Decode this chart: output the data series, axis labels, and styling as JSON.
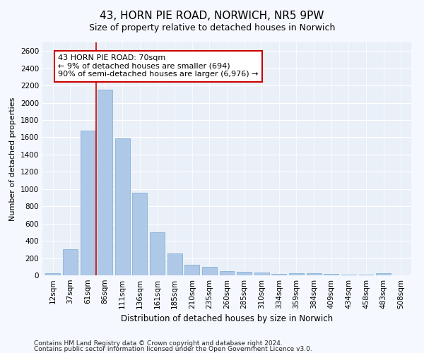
{
  "title": "43, HORN PIE ROAD, NORWICH, NR5 9PW",
  "subtitle": "Size of property relative to detached houses in Norwich",
  "xlabel": "Distribution of detached houses by size in Norwich",
  "ylabel": "Number of detached properties",
  "categories": [
    "12sqm",
    "37sqm",
    "61sqm",
    "86sqm",
    "111sqm",
    "136sqm",
    "161sqm",
    "185sqm",
    "210sqm",
    "235sqm",
    "260sqm",
    "285sqm",
    "310sqm",
    "334sqm",
    "359sqm",
    "384sqm",
    "409sqm",
    "434sqm",
    "458sqm",
    "483sqm",
    "508sqm"
  ],
  "values": [
    25,
    300,
    1680,
    2150,
    1590,
    960,
    500,
    250,
    120,
    100,
    50,
    42,
    35,
    20,
    25,
    22,
    20,
    10,
    5,
    25,
    0
  ],
  "bar_color": "#aec8e8",
  "bar_edge_color": "#7aaad0",
  "bar_width": 0.85,
  "vline_color": "#cc0000",
  "annotation_line1": "43 HORN PIE ROAD: 70sqm",
  "annotation_line2": "← 9% of detached houses are smaller (694)",
  "annotation_line3": "90% of semi-detached houses are larger (6,976) →",
  "annotation_box_color": "#ffffff",
  "annotation_box_edge_color": "#cc0000",
  "ylim": [
    0,
    2700
  ],
  "yticks": [
    0,
    200,
    400,
    600,
    800,
    1000,
    1200,
    1400,
    1600,
    1800,
    2000,
    2200,
    2400,
    2600
  ],
  "footnote1": "Contains HM Land Registry data © Crown copyright and database right 2024.",
  "footnote2": "Contains public sector information licensed under the Open Government Licence v3.0.",
  "fig_bg_color": "#f5f8fe",
  "ax_bg_color": "#eaf0f8",
  "grid_color": "#ffffff",
  "title_fontsize": 11,
  "subtitle_fontsize": 9,
  "xlabel_fontsize": 8.5,
  "ylabel_fontsize": 8,
  "tick_fontsize": 7.5,
  "annotation_fontsize": 8,
  "footnote_fontsize": 6.5
}
